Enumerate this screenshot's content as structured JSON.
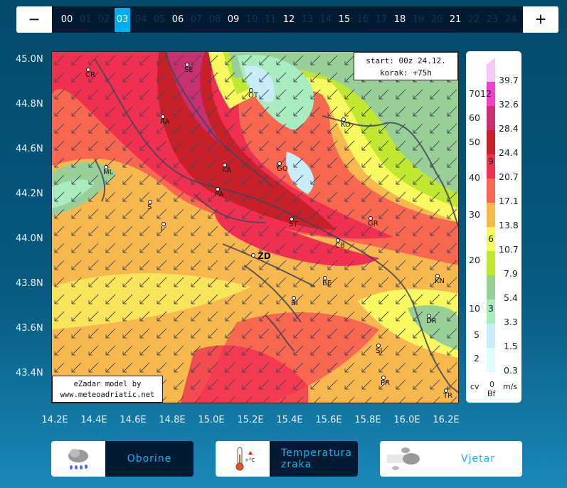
{
  "timebar": {
    "minus_label": "−",
    "plus_label": "+",
    "active": "03",
    "hours": [
      "00",
      "01",
      "02",
      "03",
      "04",
      "05",
      "06",
      "07",
      "08",
      "09",
      "10",
      "11",
      "12",
      "13",
      "14",
      "15",
      "16",
      "17",
      "18",
      "19",
      "20",
      "21",
      "22",
      "23",
      "24"
    ],
    "major": [
      "00",
      "03",
      "06",
      "09",
      "12",
      "15",
      "18",
      "21"
    ]
  },
  "map": {
    "info": {
      "line1": "start: 00z 24.12.",
      "line2": "korak: +75h"
    },
    "credit": {
      "line1": "eZadar model by",
      "line2": "www.meteoadriatic.net"
    },
    "lat_labels": [
      "45.0N",
      "44.8N",
      "44.6N",
      "44.2N",
      "44.0N",
      "43.8N",
      "43.6N",
      "43.4N"
    ],
    "lon_labels": [
      "14.2E",
      "14.4E",
      "14.6E",
      "14.8E",
      "15.0E",
      "15.2E",
      "15.4E",
      "15.6E",
      "15.8E",
      "16.0E",
      "16.2E"
    ],
    "cities": [
      "CR",
      "SE",
      "OT",
      "RA",
      "KO",
      "ML",
      "KA",
      "GO",
      "PA",
      "S",
      "I",
      "ST",
      "GR",
      "CB",
      "ZD",
      "BE",
      "KN",
      "BI",
      "DR",
      "SI",
      "PR",
      "TR"
    ]
  },
  "legend": {
    "colors": [
      "#f8c8f4",
      "#f040c8",
      "#c83070",
      "#c82028",
      "#f03050",
      "#f86850",
      "#f8b850",
      "#f8f860",
      "#c0e830",
      "#98d098",
      "#a8ecc0",
      "#c8ecf8",
      "#e0fcfc"
    ],
    "ms": [
      "39.7",
      "32.6",
      "28.4",
      "24.4",
      "20.7",
      "17.1",
      "13.8",
      "10.7",
      "7.9",
      "5.4",
      "3.3",
      "1.5",
      "0.3"
    ],
    "kt": [
      "70",
      "60",
      "50",
      "40",
      "30",
      "20",
      "10",
      "5",
      "2"
    ],
    "bf": [
      "12",
      "9",
      "6",
      "3"
    ],
    "unit_kt": "cv",
    "unit_bf_0": "0",
    "unit_bf": "Bf",
    "unit_ms": "m/s"
  },
  "buttons": [
    {
      "label": "Oborine",
      "icon": "rain-cloud-icon"
    },
    {
      "label": "Temperatura zraka",
      "icon": "thermometer-icon"
    },
    {
      "label": "Vjetar",
      "icon": "wind-cloud-icon",
      "selected": true
    }
  ]
}
